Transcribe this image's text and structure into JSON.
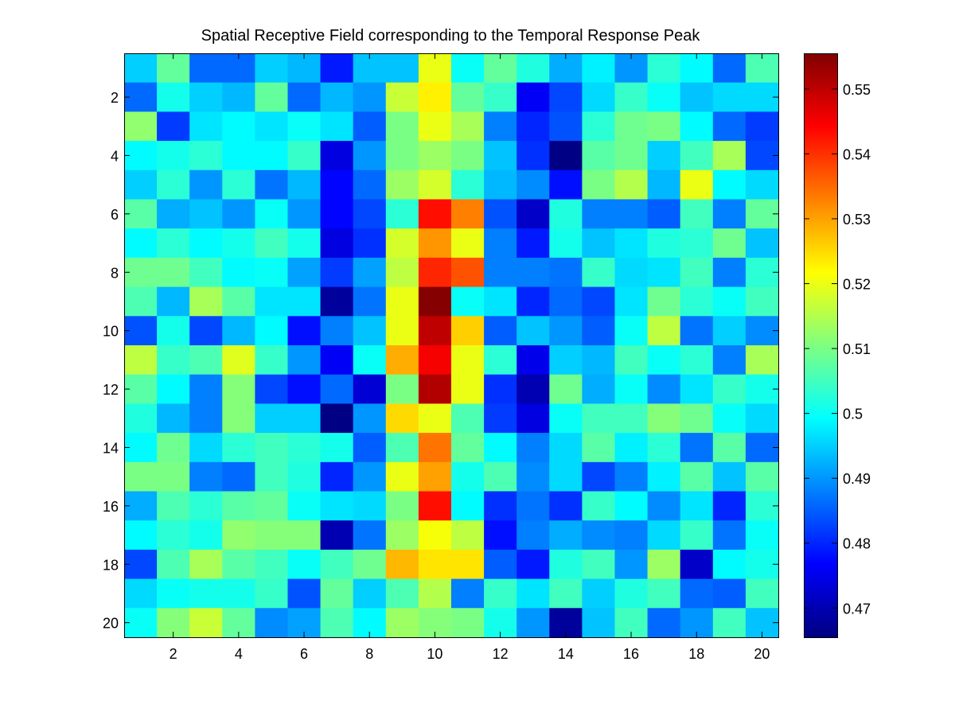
{
  "chart_data": {
    "type": "heatmap",
    "title": "Spatial Receptive Field corresponding to the Temporal Response Peak",
    "xlabel": "",
    "ylabel": "",
    "x_ticks": [
      2,
      4,
      6,
      8,
      10,
      12,
      14,
      16,
      18,
      20
    ],
    "y_ticks": [
      2,
      4,
      6,
      8,
      10,
      12,
      14,
      16,
      18,
      20
    ],
    "xlim": [
      0.5,
      20.5
    ],
    "ylim": [
      0.5,
      20.5
    ],
    "y_direction": "reversed",
    "colormap": "jet",
    "clim": [
      0.4655,
      0.5555
    ],
    "colorbar": {
      "position": "right",
      "ticks": [
        0.47,
        0.48,
        0.49,
        0.5,
        0.51,
        0.52,
        0.53,
        0.54,
        0.55
      ]
    },
    "values": [
      [
        0.495,
        0.508,
        0.486,
        0.486,
        0.495,
        0.493,
        0.479,
        0.494,
        0.494,
        0.52,
        0.5,
        0.508,
        0.502,
        0.492,
        0.498,
        0.49,
        0.503,
        0.499,
        0.486,
        0.506
      ],
      [
        0.486,
        0.501,
        0.495,
        0.493,
        0.508,
        0.486,
        0.493,
        0.49,
        0.517,
        0.523,
        0.508,
        0.504,
        0.476,
        0.483,
        0.496,
        0.504,
        0.5,
        0.494,
        0.496,
        0.496
      ],
      [
        0.512,
        0.482,
        0.497,
        0.499,
        0.497,
        0.5,
        0.497,
        0.485,
        0.51,
        0.52,
        0.514,
        0.488,
        0.48,
        0.484,
        0.503,
        0.509,
        0.51,
        0.499,
        0.486,
        0.482
      ],
      [
        0.499,
        0.501,
        0.503,
        0.499,
        0.499,
        0.504,
        0.474,
        0.49,
        0.51,
        0.513,
        0.51,
        0.494,
        0.481,
        0.466,
        0.507,
        0.509,
        0.495,
        0.505,
        0.514,
        0.483
      ],
      [
        0.495,
        0.503,
        0.49,
        0.503,
        0.487,
        0.493,
        0.477,
        0.486,
        0.513,
        0.518,
        0.503,
        0.493,
        0.489,
        0.478,
        0.51,
        0.515,
        0.493,
        0.52,
        0.499,
        0.496
      ],
      [
        0.507,
        0.492,
        0.494,
        0.49,
        0.5,
        0.49,
        0.477,
        0.483,
        0.503,
        0.543,
        0.533,
        0.484,
        0.472,
        0.502,
        0.488,
        0.488,
        0.485,
        0.505,
        0.488,
        0.508
      ],
      [
        0.499,
        0.503,
        0.499,
        0.501,
        0.505,
        0.501,
        0.474,
        0.481,
        0.518,
        0.531,
        0.52,
        0.488,
        0.479,
        0.501,
        0.494,
        0.497,
        0.502,
        0.503,
        0.509,
        0.494
      ],
      [
        0.509,
        0.509,
        0.505,
        0.499,
        0.5,
        0.491,
        0.482,
        0.491,
        0.516,
        0.541,
        0.537,
        0.488,
        0.488,
        0.487,
        0.504,
        0.496,
        0.497,
        0.505,
        0.488,
        0.503
      ],
      [
        0.506,
        0.493,
        0.514,
        0.507,
        0.497,
        0.497,
        0.468,
        0.487,
        0.52,
        0.555,
        0.5,
        0.497,
        0.48,
        0.486,
        0.483,
        0.497,
        0.509,
        0.503,
        0.5,
        0.505
      ],
      [
        0.484,
        0.501,
        0.483,
        0.493,
        0.499,
        0.478,
        0.488,
        0.494,
        0.52,
        0.55,
        0.526,
        0.485,
        0.494,
        0.49,
        0.485,
        0.5,
        0.516,
        0.487,
        0.495,
        0.489
      ],
      [
        0.516,
        0.504,
        0.506,
        0.519,
        0.504,
        0.49,
        0.476,
        0.5,
        0.529,
        0.545,
        0.52,
        0.503,
        0.475,
        0.495,
        0.493,
        0.505,
        0.5,
        0.503,
        0.488,
        0.514
      ],
      [
        0.507,
        0.499,
        0.488,
        0.511,
        0.483,
        0.478,
        0.486,
        0.473,
        0.51,
        0.551,
        0.52,
        0.481,
        0.47,
        0.509,
        0.492,
        0.5,
        0.489,
        0.497,
        0.504,
        0.501
      ],
      [
        0.502,
        0.493,
        0.488,
        0.511,
        0.495,
        0.495,
        0.466,
        0.49,
        0.525,
        0.52,
        0.506,
        0.482,
        0.474,
        0.5,
        0.505,
        0.505,
        0.511,
        0.509,
        0.5,
        0.496
      ],
      [
        0.499,
        0.509,
        0.496,
        0.503,
        0.505,
        0.503,
        0.501,
        0.485,
        0.506,
        0.534,
        0.508,
        0.499,
        0.488,
        0.496,
        0.507,
        0.498,
        0.503,
        0.487,
        0.507,
        0.486
      ],
      [
        0.51,
        0.51,
        0.488,
        0.486,
        0.505,
        0.502,
        0.48,
        0.49,
        0.52,
        0.53,
        0.501,
        0.506,
        0.489,
        0.496,
        0.483,
        0.488,
        0.498,
        0.507,
        0.494,
        0.507
      ],
      [
        0.492,
        0.506,
        0.503,
        0.507,
        0.508,
        0.5,
        0.497,
        0.496,
        0.51,
        0.543,
        0.499,
        0.481,
        0.487,
        0.481,
        0.504,
        0.499,
        0.489,
        0.497,
        0.48,
        0.503
      ],
      [
        0.499,
        0.503,
        0.501,
        0.512,
        0.511,
        0.511,
        0.47,
        0.487,
        0.513,
        0.521,
        0.516,
        0.478,
        0.488,
        0.492,
        0.489,
        0.488,
        0.496,
        0.504,
        0.487,
        0.5
      ],
      [
        0.483,
        0.506,
        0.514,
        0.507,
        0.505,
        0.5,
        0.505,
        0.509,
        0.528,
        0.524,
        0.524,
        0.485,
        0.479,
        0.502,
        0.505,
        0.49,
        0.513,
        0.472,
        0.499,
        0.501
      ],
      [
        0.496,
        0.5,
        0.501,
        0.501,
        0.504,
        0.484,
        0.508,
        0.495,
        0.506,
        0.515,
        0.488,
        0.504,
        0.497,
        0.505,
        0.495,
        0.502,
        0.505,
        0.486,
        0.485,
        0.505
      ],
      [
        0.5,
        0.511,
        0.517,
        0.508,
        0.489,
        0.491,
        0.506,
        0.499,
        0.513,
        0.511,
        0.51,
        0.501,
        0.49,
        0.468,
        0.494,
        0.505,
        0.486,
        0.49,
        0.505,
        0.494
      ]
    ]
  }
}
